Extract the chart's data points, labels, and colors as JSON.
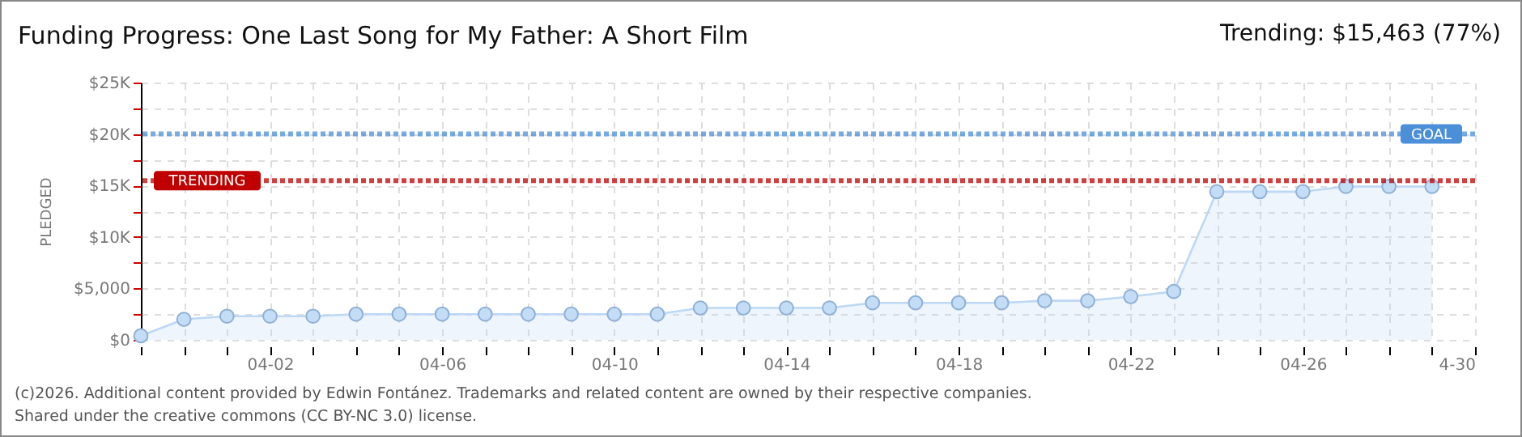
{
  "chart_data": {
    "type": "area",
    "title": "Funding Progress: One Last Song for My Father: A Short Film",
    "ylabel": "PLEDGED",
    "annotations": [
      "Trending: $15,463 (77%)",
      "(c)2026. Additional content provided by Edwin Fontánez. Trademarks and related content are owned by their respective companies.",
      "Shared under the creative commons (CC BY-NC 3.0) license."
    ],
    "x": [
      "--03-30",
      "--03-31",
      "--04-01",
      "--04-02",
      "--04-03",
      "--04-04",
      "--04-05",
      "--04-06",
      "--04-07",
      "--04-08",
      "--04-09",
      "--04-10",
      "--04-11",
      "--04-12",
      "--04-13",
      "--04-14",
      "--04-15",
      "--04-16",
      "--04-17",
      "--04-18",
      "--04-19",
      "--04-20",
      "--04-21",
      "--04-22",
      "--04-23",
      "--04-24",
      "--04-25",
      "--04-26",
      "--04-27",
      "--04-28",
      "--04-29"
    ],
    "series": [
      {
        "color": "#bcd8f5",
        "values": [
          400,
          2000,
          2300,
          2300,
          2300,
          2500,
          2500,
          2500,
          2500,
          2500,
          2500,
          2500,
          2500,
          3100,
          3100,
          3100,
          3100,
          3600,
          3600,
          3600,
          3600,
          3800,
          3800,
          4200,
          4700,
          14400,
          14400,
          14400,
          14900,
          14900,
          14900
        ]
      }
    ],
    "xlim": [
      "--03-30",
      "--04-30"
    ],
    "xticks": [
      {
        "value": "--03-30",
        "label": null
      },
      {
        "value": "--03-31",
        "label": null
      },
      {
        "value": "--04-01",
        "label": null
      },
      {
        "value": "--04-02",
        "label": "04-02"
      },
      {
        "value": "--04-03",
        "label": null
      },
      {
        "value": "--04-04",
        "label": null
      },
      {
        "value": "--04-05",
        "label": null
      },
      {
        "value": "--04-06",
        "label": "04-06"
      },
      {
        "value": "--04-07",
        "label": null
      },
      {
        "value": "--04-08",
        "label": null
      },
      {
        "value": "--04-09",
        "label": null
      },
      {
        "value": "--04-10",
        "label": "04-10"
      },
      {
        "value": "--04-11",
        "label": null
      },
      {
        "value": "--04-12",
        "label": null
      },
      {
        "value": "--04-13",
        "label": null
      },
      {
        "value": "--04-14",
        "label": "04-14"
      },
      {
        "value": "--04-15",
        "label": null
      },
      {
        "value": "--04-16",
        "label": null
      },
      {
        "value": "--04-17",
        "label": null
      },
      {
        "value": "--04-18",
        "label": "04-18"
      },
      {
        "value": "--04-19",
        "label": null
      },
      {
        "value": "--04-20",
        "label": null
      },
      {
        "value": "--04-21",
        "label": null
      },
      {
        "value": "--04-22",
        "label": "04-22"
      },
      {
        "value": "--04-23",
        "label": null
      },
      {
        "value": "--04-24",
        "label": null
      },
      {
        "value": "--04-25",
        "label": null
      },
      {
        "value": "--04-26",
        "label": "04-26"
      },
      {
        "value": "--04-27",
        "label": null
      },
      {
        "value": "--04-28",
        "label": null
      },
      {
        "value": "--04-29",
        "label": null
      },
      {
        "value": "--04-30",
        "label": "4-30"
      }
    ],
    "ylim": [
      0,
      25000
    ],
    "yticks": [
      {
        "value": 0,
        "label": "$0"
      },
      {
        "value": 2500,
        "label": null
      },
      {
        "value": 5000,
        "label": "$5,000"
      },
      {
        "value": 7500,
        "label": null
      },
      {
        "value": 10000,
        "label": "$10K"
      },
      {
        "value": 12500,
        "label": null
      },
      {
        "value": 15000,
        "label": "$15K"
      },
      {
        "value": 17500,
        "label": null
      },
      {
        "value": 20000,
        "label": "$20K"
      },
      {
        "value": 22500,
        "label": null
      },
      {
        "value": 25000,
        "label": "$25K"
      }
    ],
    "ref_lines": [
      {
        "axis": "y",
        "value": 20000,
        "label": "GOAL",
        "color": "#4a8fd8",
        "line_style": "dotted"
      },
      {
        "axis": "y",
        "value": 15463,
        "label": "TRENDING",
        "color": "#c00000",
        "line_style": "dotted"
      }
    ],
    "grid": true,
    "marker": "circle",
    "line_style": "solid"
  }
}
